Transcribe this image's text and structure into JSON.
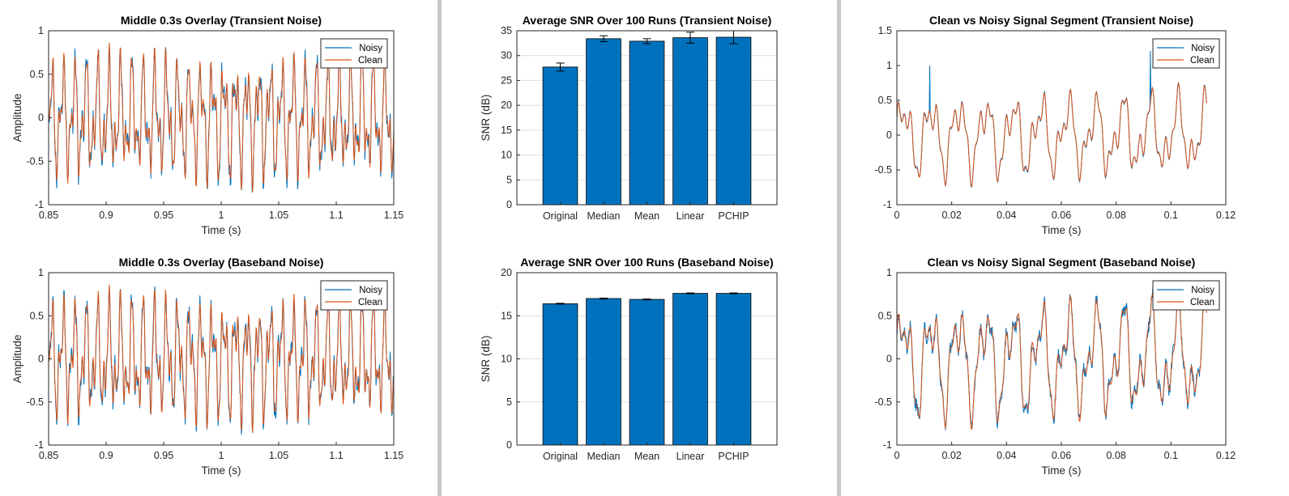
{
  "figure": {
    "background": "#f0f0f0",
    "colors": {
      "noisy": "#0072bd",
      "clean": "#d95319",
      "bar": "#0072bd"
    }
  },
  "chart_data": [
    {
      "id": "overlay-transient",
      "type": "line",
      "title": "Middle 0.3s Overlay (Transient Noise)",
      "xlabel": "Time (s)",
      "ylabel": "Amplitude",
      "xlim": [
        0.85,
        1.15
      ],
      "ylim": [
        -1,
        1
      ],
      "xticks": [
        0.85,
        0.9,
        0.95,
        1,
        1.05,
        1.1,
        1.15
      ],
      "xtick_labels": [
        "0.85",
        "0.9",
        "0.95",
        "1",
        "1.05",
        "1.1",
        "1.15"
      ],
      "yticks": [
        -1,
        -0.5,
        0,
        0.5,
        1
      ],
      "ytick_labels": [
        "-1",
        "-0.5",
        "0",
        "0.5",
        "1"
      ],
      "grid": false,
      "legend": "top-right",
      "signal": {
        "components": [
          [
            0.45,
            100,
            0
          ],
          [
            0.3,
            205,
            1.1
          ],
          [
            0.12,
            430,
            0.4
          ]
        ],
        "envelope": 1,
        "noise_amp": 0.1,
        "spikes": []
      },
      "series": [
        {
          "name": "Noisy",
          "color": "#0072bd",
          "noisy": true
        },
        {
          "name": "Clean",
          "color": "#d95319",
          "noisy": false
        }
      ]
    },
    {
      "id": "snr-transient",
      "type": "bar",
      "title": "Average SNR Over 100 Runs (Transient Noise)",
      "xlabel": "",
      "ylabel": "SNR (dB)",
      "categories": [
        "Original",
        "Median",
        "Mean",
        "Linear",
        "PCHIP"
      ],
      "values": [
        27.7,
        33.4,
        32.9,
        33.6,
        33.7
      ],
      "errors": [
        0.8,
        0.6,
        0.5,
        1.1,
        1.3
      ],
      "ylim": [
        0,
        35
      ],
      "yticks": [
        0,
        5,
        10,
        15,
        20,
        25,
        30,
        35
      ],
      "ytick_labels": [
        "0",
        "5",
        "10",
        "15",
        "20",
        "25",
        "30",
        "35"
      ],
      "xlim": [
        -1,
        5
      ],
      "grid": true,
      "color": "#0072bd"
    },
    {
      "id": "segment-transient",
      "type": "line",
      "title": "Clean vs Noisy Signal Segment (Transient Noise)",
      "xlabel": "Time (s)",
      "ylabel": "",
      "xlim": [
        0,
        0.12
      ],
      "ylim": [
        -1,
        1.5
      ],
      "data_xmax": 0.113,
      "xticks": [
        0,
        0.02,
        0.04,
        0.06,
        0.08,
        0.1,
        0.12
      ],
      "xtick_labels": [
        "0",
        "0.02",
        "0.04",
        "0.06",
        "0.08",
        "0.1",
        "0.12"
      ],
      "yticks": [
        -1,
        -0.5,
        0,
        0.5,
        1,
        1.5
      ],
      "ytick_labels": [
        "-1",
        "-0.5",
        "0",
        "0.5",
        "1",
        "1.5"
      ],
      "grid": false,
      "legend": "top-right",
      "signal": {
        "components": [
          [
            0.4,
            100,
            0
          ],
          [
            0.22,
            205,
            1.1
          ],
          [
            0.13,
            430,
            0.4
          ]
        ],
        "envelope": 1,
        "noise_amp": 0.02,
        "spikes": [
          [
            0.012,
            1.0
          ],
          [
            0.0925,
            1.21
          ]
        ]
      },
      "series": [
        {
          "name": "Noisy",
          "color": "#0072bd",
          "noisy": true
        },
        {
          "name": "Clean",
          "color": "#d95319",
          "noisy": false
        }
      ]
    },
    {
      "id": "overlay-baseband",
      "type": "line",
      "title": "Middle 0.3s Overlay (Baseband Noise)",
      "xlabel": "Time (s)",
      "ylabel": "Amplitude",
      "xlim": [
        0.85,
        1.15
      ],
      "ylim": [
        -1,
        1
      ],
      "xticks": [
        0.85,
        0.9,
        0.95,
        1,
        1.05,
        1.1,
        1.15
      ],
      "xtick_labels": [
        "0.85",
        "0.9",
        "0.95",
        "1",
        "1.05",
        "1.1",
        "1.15"
      ],
      "yticks": [
        -1,
        -0.5,
        0,
        0.5,
        1
      ],
      "ytick_labels": [
        "-1",
        "-0.5",
        "0",
        "0.5",
        "1"
      ],
      "grid": false,
      "legend": "top-right",
      "signal": {
        "components": [
          [
            0.45,
            100,
            0
          ],
          [
            0.3,
            205,
            1.1
          ],
          [
            0.12,
            430,
            0.4
          ]
        ],
        "envelope": 1,
        "noise_amp": 0.1,
        "spikes": []
      },
      "series": [
        {
          "name": "Noisy",
          "color": "#0072bd",
          "noisy": true
        },
        {
          "name": "Clean",
          "color": "#d95319",
          "noisy": false
        }
      ]
    },
    {
      "id": "snr-baseband",
      "type": "bar",
      "title": "Average SNR Over 100 Runs (Baseband Noise)",
      "xlabel": "",
      "ylabel": "SNR (dB)",
      "categories": [
        "Original",
        "Median",
        "Mean",
        "Linear",
        "PCHIP"
      ],
      "values": [
        16.4,
        17.0,
        16.9,
        17.6,
        17.6
      ],
      "errors": [
        0.05,
        0.05,
        0.05,
        0.05,
        0.05
      ],
      "ylim": [
        0,
        20
      ],
      "yticks": [
        0,
        5,
        10,
        15,
        20
      ],
      "ytick_labels": [
        "0",
        "5",
        "10",
        "15",
        "20"
      ],
      "xlim": [
        -1,
        5
      ],
      "grid": true,
      "color": "#0072bd"
    },
    {
      "id": "segment-baseband",
      "type": "line",
      "title": "Clean vs Noisy Signal Segment (Baseband Noise)",
      "xlabel": "Time (s)",
      "ylabel": "",
      "xlim": [
        0,
        0.12
      ],
      "ylim": [
        -1,
        1
      ],
      "data_xmax": 0.113,
      "xticks": [
        0,
        0.02,
        0.04,
        0.06,
        0.08,
        0.1,
        0.12
      ],
      "xtick_labels": [
        "0",
        "0.02",
        "0.04",
        "0.06",
        "0.08",
        "0.1",
        "0.12"
      ],
      "yticks": [
        -1,
        -0.5,
        0,
        0.5,
        1
      ],
      "ytick_labels": [
        "-1",
        "-0.5",
        "0",
        "0.5",
        "1"
      ],
      "grid": false,
      "legend": "top-right",
      "signal": {
        "components": [
          [
            0.45,
            100,
            0
          ],
          [
            0.25,
            205,
            1.1
          ],
          [
            0.13,
            430,
            0.4
          ]
        ],
        "envelope": 1,
        "noise_amp": 0.08,
        "spikes": []
      },
      "series": [
        {
          "name": "Noisy",
          "color": "#0072bd",
          "noisy": true
        },
        {
          "name": "Clean",
          "color": "#d95319",
          "noisy": false
        }
      ]
    }
  ]
}
